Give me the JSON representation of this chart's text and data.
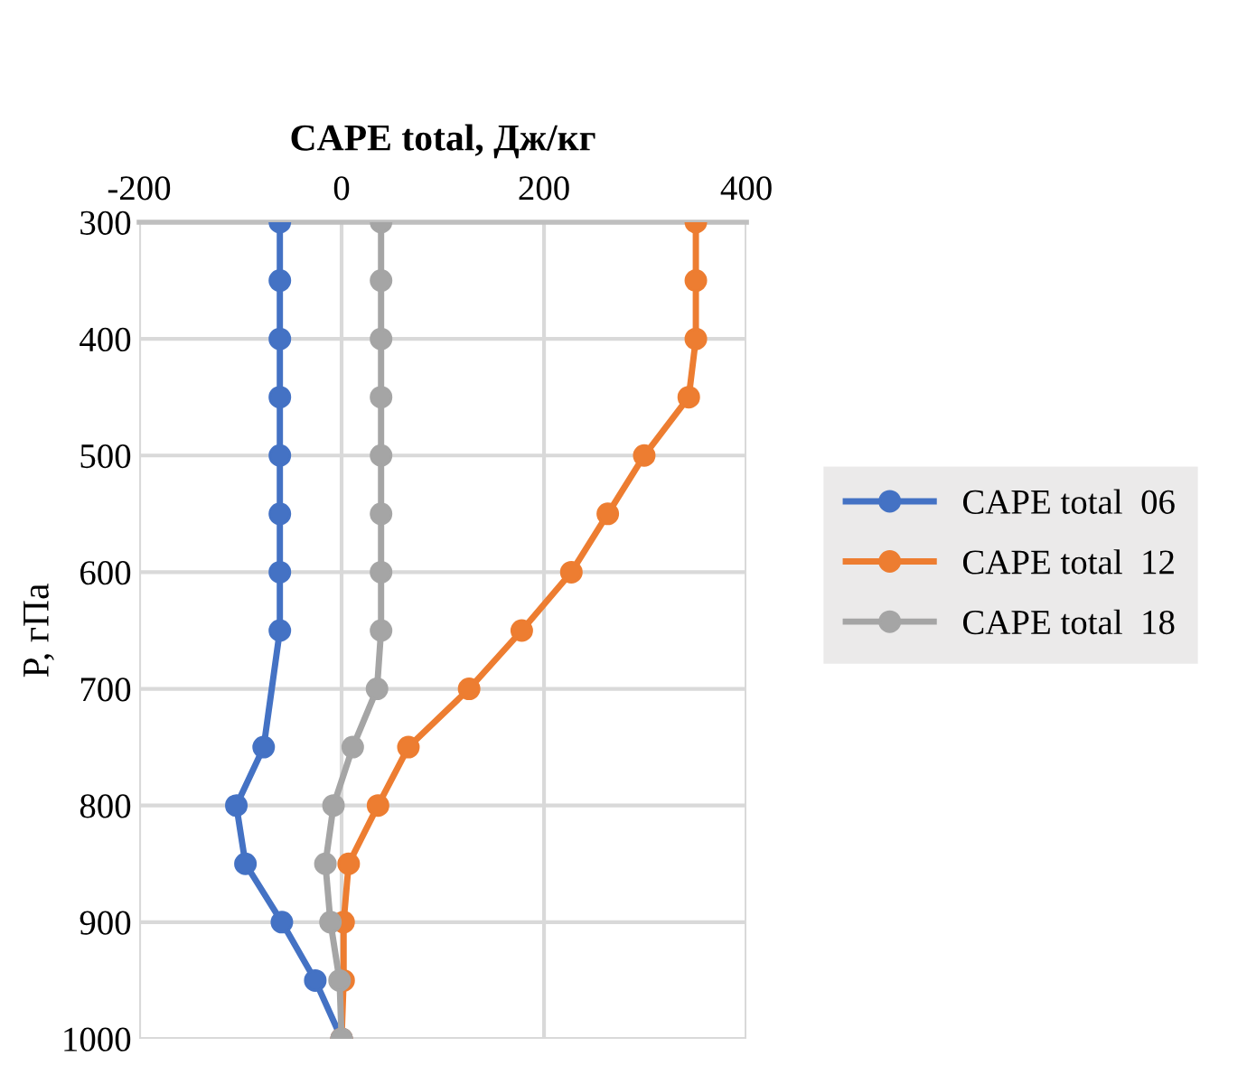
{
  "chart_data": {
    "type": "line",
    "xlabel": "CAPE total, Дж/кг",
    "ylabel": "P, гПа",
    "series": [
      {
        "name": "CAPE total  06",
        "color": "#4472c4",
        "x": [
          -61,
          -61,
          -61,
          -61,
          -61,
          -61,
          -61,
          -61,
          -77,
          -104,
          -95,
          -59,
          -26,
          0
        ],
        "values": [
          300,
          350,
          400,
          450,
          500,
          550,
          600,
          650,
          750,
          800,
          850,
          900,
          950,
          1000
        ]
      },
      {
        "name": "CAPE total  12",
        "color": "#ed7d31",
        "x": [
          350,
          350,
          350,
          343,
          299,
          263,
          227,
          178,
          126,
          66,
          36,
          7,
          2,
          2,
          0
        ],
        "values": [
          300,
          350,
          400,
          450,
          500,
          550,
          600,
          650,
          700,
          750,
          800,
          850,
          900,
          950,
          1000
        ]
      },
      {
        "name": "CAPE total  18",
        "color": "#a5a5a5",
        "x": [
          39,
          39,
          39,
          39,
          39,
          39,
          39,
          39,
          35,
          11,
          -8,
          -16,
          -11,
          -2,
          0
        ],
        "values": [
          300,
          350,
          400,
          450,
          500,
          550,
          600,
          650,
          700,
          750,
          800,
          850,
          900,
          950,
          1000
        ]
      }
    ],
    "xlim": [
      -200,
      400
    ],
    "xticks": [
      -200,
      0,
      200,
      400
    ],
    "ylim": [
      1000,
      300
    ],
    "yticks": [
      300,
      400,
      500,
      600,
      700,
      800,
      900,
      1000
    ],
    "grid": true,
    "legend": "right",
    "marker": "circle",
    "line_style": "solid"
  }
}
